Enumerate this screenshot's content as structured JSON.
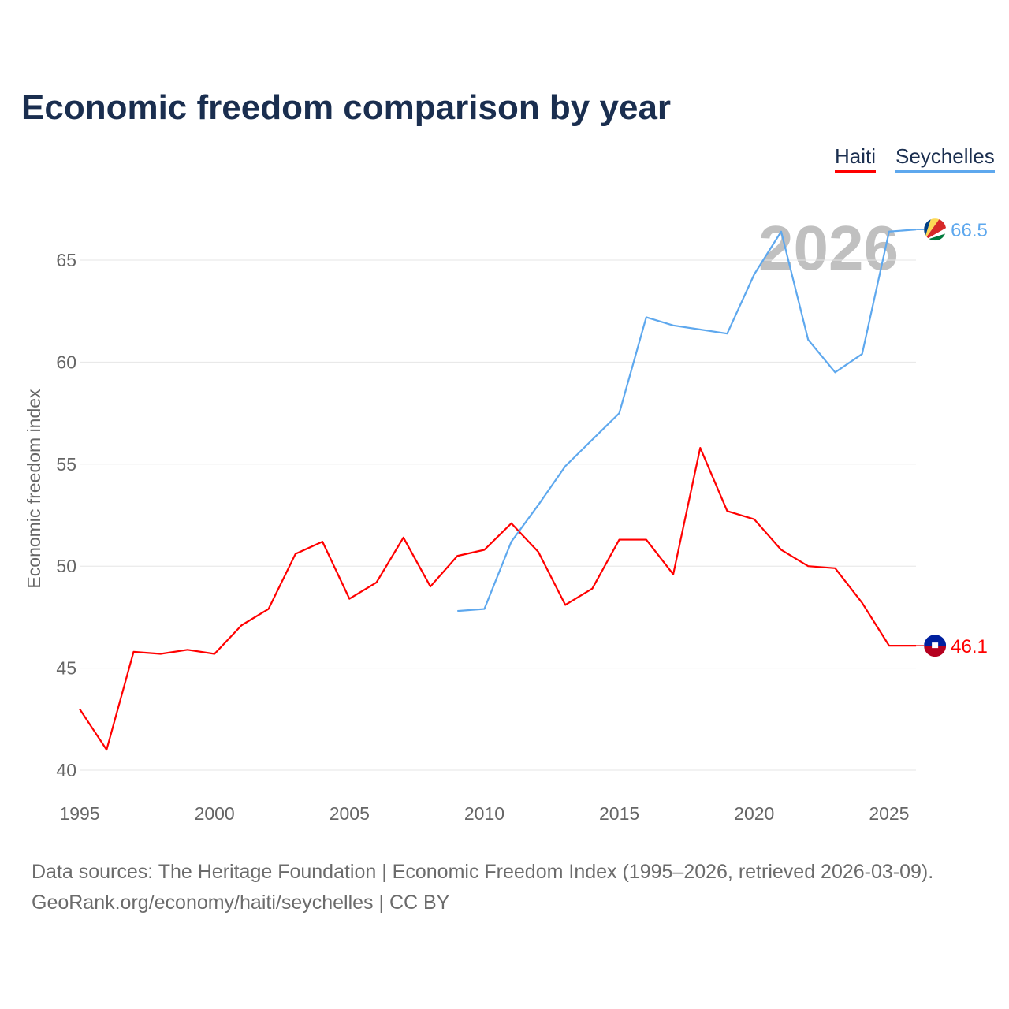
{
  "title": "Economic freedom comparison by year",
  "legend": [
    {
      "label": "Haiti",
      "color": "#ff0000"
    },
    {
      "label": "Seychelles",
      "color": "#5ea8ee"
    }
  ],
  "footer": {
    "line1": "Data sources: The Heritage Foundation | Economic Freedom Index (1995–2026, retrieved 2026-03-09).",
    "line2": "GeoRank.org/economy/haiti/seychelles | CC BY"
  },
  "chart_data": {
    "type": "line",
    "title": "Economic freedom comparison by year",
    "xlabel": "",
    "ylabel": "Economic freedom index",
    "xlim": [
      1995,
      2026
    ],
    "ylim": [
      40,
      67
    ],
    "xticks": [
      "1995",
      "2000",
      "2005",
      "2010",
      "2015",
      "2020",
      "2025"
    ],
    "yticks": [
      "40",
      "45",
      "50",
      "55",
      "60",
      "65"
    ],
    "watermark": "2026",
    "grid": true,
    "legend_position": "top-right",
    "series": [
      {
        "name": "Haiti",
        "color": "#ff0000",
        "end_label": "46.1",
        "x": [
          1995,
          1996,
          1997,
          1998,
          1999,
          2000,
          2001,
          2002,
          2003,
          2004,
          2005,
          2006,
          2007,
          2008,
          2009,
          2010,
          2011,
          2012,
          2013,
          2014,
          2015,
          2016,
          2017,
          2018,
          2019,
          2020,
          2021,
          2022,
          2023,
          2024,
          2025,
          2026
        ],
        "values": [
          43.0,
          41.0,
          45.8,
          45.7,
          45.9,
          45.7,
          47.1,
          47.9,
          50.6,
          51.2,
          48.4,
          49.2,
          51.4,
          49.0,
          50.5,
          50.8,
          52.1,
          50.7,
          48.1,
          48.9,
          51.3,
          51.3,
          49.6,
          55.8,
          52.7,
          52.3,
          50.8,
          50.0,
          49.9,
          48.2,
          46.1,
          46.1
        ]
      },
      {
        "name": "Seychelles",
        "color": "#5ea8ee",
        "end_label": "66.5",
        "x": [
          2009,
          2010,
          2011,
          2012,
          2013,
          2014,
          2015,
          2016,
          2017,
          2018,
          2019,
          2020,
          2021,
          2022,
          2023,
          2024,
          2025,
          2026
        ],
        "values": [
          47.8,
          47.9,
          51.2,
          53.0,
          54.9,
          56.2,
          57.5,
          62.2,
          61.8,
          61.6,
          61.4,
          64.3,
          66.4,
          61.1,
          59.5,
          60.4,
          66.4,
          66.5
        ]
      }
    ]
  }
}
